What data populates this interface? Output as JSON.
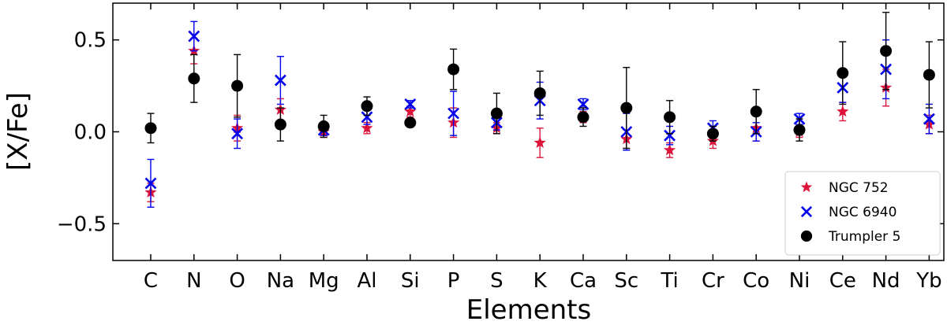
{
  "chart_data": {
    "type": "scatter",
    "xlabel": "Elements",
    "ylabel": "[X/Fe]",
    "categories": [
      "C",
      "N",
      "O",
      "Na",
      "Mg",
      "Al",
      "Si",
      "P",
      "S",
      "K",
      "Ca",
      "Sc",
      "Ti",
      "Cr",
      "Co",
      "Ni",
      "Ce",
      "Nd",
      "Yb"
    ],
    "ylim": [
      -0.7,
      0.7
    ],
    "yticks": [
      "0.5",
      "0.0",
      "−0.5"
    ],
    "ytick_values": [
      0.5,
      0.0,
      -0.5
    ],
    "legend_position": "lower-right",
    "series": [
      {
        "name": "NGC 752",
        "marker": "star",
        "color": "#dc143c",
        "values": [
          -0.33,
          0.44,
          0.02,
          0.12,
          0.0,
          0.02,
          0.11,
          0.05,
          0.02,
          -0.06,
          0.08,
          -0.04,
          -0.1,
          -0.05,
          0.02,
          0.0,
          0.11,
          0.24,
          0.04
        ],
        "errors": [
          0.05,
          0.07,
          0.07,
          0.06,
          0.03,
          0.03,
          0.03,
          0.08,
          0.03,
          0.08,
          0.03,
          0.05,
          0.04,
          0.04,
          0.07,
          0.03,
          0.05,
          0.1,
          0.05
        ]
      },
      {
        "name": "NGC 6940",
        "marker": "x",
        "color": "#0000ee",
        "values": [
          -0.28,
          0.52,
          -0.01,
          0.28,
          0.01,
          0.08,
          0.15,
          0.1,
          0.05,
          0.17,
          0.15,
          0.0,
          -0.02,
          0.02,
          0.0,
          0.07,
          0.24,
          0.34,
          0.07
        ],
        "errors": [
          0.13,
          0.08,
          0.08,
          0.13,
          0.03,
          0.04,
          0.02,
          0.12,
          0.04,
          0.1,
          0.03,
          0.1,
          0.05,
          0.04,
          0.05,
          0.03,
          0.08,
          0.16,
          0.08
        ]
      },
      {
        "name": "Trumpler 5",
        "marker": "circle",
        "color": "#000000",
        "values": [
          0.02,
          0.29,
          0.25,
          0.04,
          0.03,
          0.14,
          0.05,
          0.34,
          0.1,
          0.21,
          0.08,
          0.13,
          0.08,
          -0.01,
          0.11,
          0.01,
          0.32,
          0.44,
          0.31
        ],
        "errors": [
          0.08,
          0.13,
          0.17,
          0.09,
          0.06,
          0.05,
          0.02,
          0.11,
          0.11,
          0.12,
          0.05,
          0.22,
          0.09,
          0.04,
          0.12,
          0.06,
          0.17,
          0.21,
          0.18
        ]
      }
    ]
  }
}
